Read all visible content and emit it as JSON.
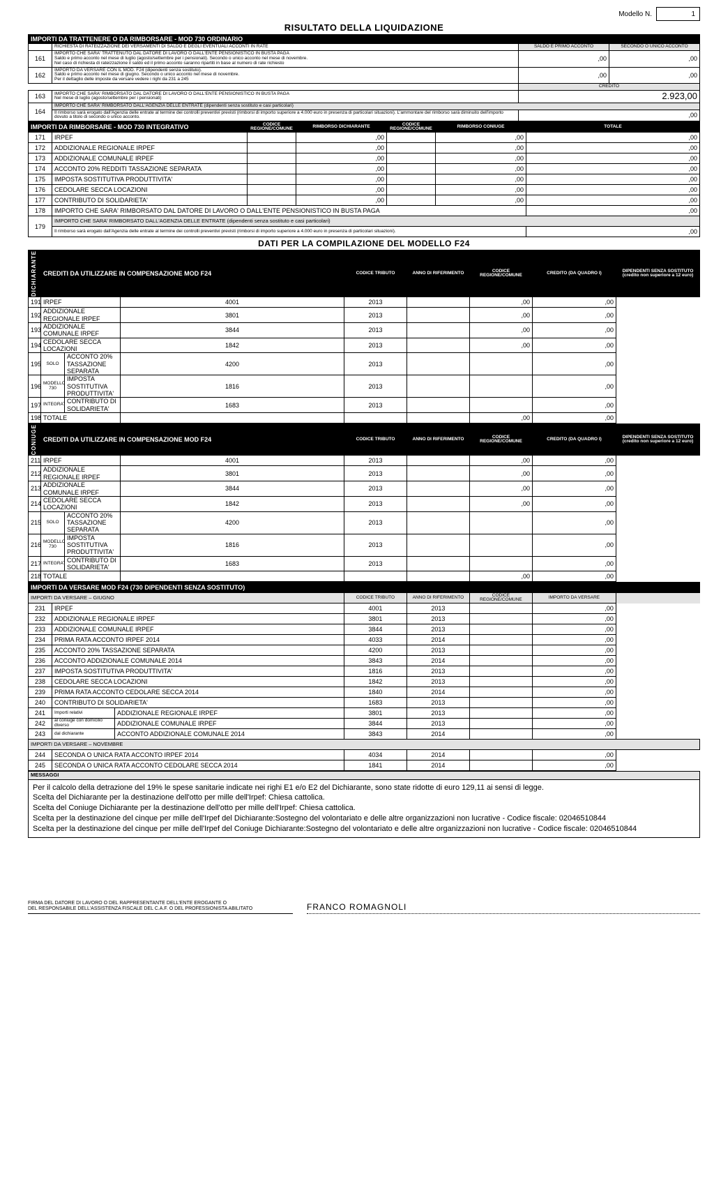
{
  "header": {
    "modello_label": "Modello N.",
    "modello_n": "1",
    "title": "RISULTATO DELLA LIQUIDAZIONE"
  },
  "sec1": {
    "bar": "IMPORTI DA TRATTENERE O DA RIMBORSARE - MOD 730 ORDINARIO",
    "sub": "RICHIESTA DI RATEIZZAZIONE DEI VERSAMENTI DI SALDO E DEGLI EVENTUALI ACCONTI IN RATE",
    "col_saldo": "SALDO E PRIMO ACCONTO",
    "col_sec": "SECONDO O UNICO ACCONTO",
    "r161": {
      "n": "161",
      "t": "IMPORTO CHE SARA' TRATTENUTO DAL DATORE DI LAVORO O DALL'ENTE PENSIONISTICO IN BUSTA PAGA\nSaldo e primo acconto nel mese di luglio (agosto/settembre per i pensionati). Secondo o unico acconto nel mese di novembre.\nNel caso di richiesta di rateizzazione il saldo ed il primo acconto saranno ripartiti in base al numero di rate richiesto",
      "a": ",00",
      "b": ",00"
    },
    "r162": {
      "n": "162",
      "t": "IMPORTO DA VERSARE CON IL MOD. F24 (dipendenti senza sostituto).\nSaldo e primo acconto nel mese di giugno. Secondo o unico acconto nel mese di novembre.\nPer il dettaglio delle imposte da versare vedere i righi da 231 a 245",
      "a": ",00",
      "b": ",00"
    },
    "credito": "CREDITO",
    "r163": {
      "n": "163",
      "t": "IMPORTO CHE SARA' RIMBORSATO DAL DATORE DI LAVORO O DALL'ENTE PENSIONISTICO IN BUSTA PAGA\nNel mese di luglio (agosto/settembre per i pensionati)",
      "v": "2.923,00"
    },
    "r164_t": "IMPORTO CHE SARA' RIMBORSATO DALL'AGENZIA DELLE ENTRATE (dipendenti senza sostituto e casi particolari)",
    "r164": {
      "n": "164",
      "t": "Il rimborso sarà erogato dall'Agenzia delle entrate al termine dei controlli preventivi previsti (rimborsi di importo superiore a 4.000 euro in presenza di particolari situazioni). L'ammontare del rimborso sarà diminuito dell'importo dovuto a titolo di secondo o unico acconto.",
      "v": ",00"
    }
  },
  "sec2": {
    "bar": "IMPORTI DA RIMBORSARE - MOD 730 INTEGRATIVO",
    "h1": "CODICE REGIONE/COMUNE",
    "h2": "RIMBORSO DICHIARANTE",
    "h3": "CODICE REGIONE/COMUNE",
    "h4": "RIMBORSO CONIUGE",
    "h5": "TOTALE",
    "rows": [
      {
        "n": "171",
        "d": "IRPEF",
        "a": ",00",
        "b": ",00",
        "c": ",00"
      },
      {
        "n": "172",
        "d": "ADDIZIONALE REGIONALE IRPEF",
        "a": ",00",
        "b": ",00",
        "c": ",00"
      },
      {
        "n": "173",
        "d": "ADDIZIONALE COMUNALE IRPEF",
        "a": ",00",
        "b": ",00",
        "c": ",00"
      },
      {
        "n": "174",
        "d": "ACCONTO 20% REDDITI TASSAZIONE SEPARATA",
        "a": ",00",
        "b": ",00",
        "c": ",00"
      },
      {
        "n": "175",
        "d": "IMPOSTA SOSTITUTIVA PRODUTTIVITA'",
        "a": ",00",
        "b": ",00",
        "c": ",00"
      },
      {
        "n": "176",
        "d": "CEDOLARE SECCA LOCAZIONI",
        "a": ",00",
        "b": ",00",
        "c": ",00"
      },
      {
        "n": "177",
        "d": "CONTRIBUTO DI SOLIDARIETA'",
        "a": ",00",
        "b": ",00",
        "c": ",00"
      }
    ],
    "r178": {
      "n": "178",
      "d": "IMPORTO CHE SARA' RIMBORSATO DAL DATORE DI LAVORO O DALL'ENTE PENSIONISTICO IN BUSTA PAGA",
      "v": ",00"
    },
    "r179": {
      "n": "179",
      "d": "IMPORTO CHE SARA' RIMBORSATO DALL'AGENZIA DELLE ENTRATE (dipendenti senza sostituto e casi particolari)"
    },
    "r179b": {
      "t": "Il rimborso sarà erogato dall'Agenzia delle entrate al termine dei controlli preventivi previsti (rimborsi di importo superiore a 4.000 euro in presenza di particolari situazioni).",
      "v": ",00"
    }
  },
  "sec3title": "DATI PER LA COMPILAZIONE DEL MODELLO F24",
  "cred": {
    "bar": "CREDITI DA UTILIZZARE IN COMPENSAZIONE MOD F24",
    "h": [
      "CODICE TRIBUTO",
      "ANNO DI RIFERIMENTO",
      "CODICE REGIONE/COMUNE",
      "CREDITO (DA QUADRO I)",
      "DIPENDENTI SENZA SOSTITUTO (credito non superiore a 12 euro)"
    ],
    "side": "DICHIARANTE",
    "rows": [
      {
        "n": "191",
        "d": "IRPEF",
        "ct": "4001",
        "a": "2013",
        "q": ",00",
        "s": ",00"
      },
      {
        "n": "192",
        "d": "ADDIZIONALE REGIONALE IRPEF",
        "ct": "3801",
        "a": "2013",
        "q": ",00",
        "s": ",00"
      },
      {
        "n": "193",
        "d": "ADDIZIONALE COMUNALE IRPEF",
        "ct": "3844",
        "a": "2013",
        "q": ",00",
        "s": ",00"
      },
      {
        "n": "194",
        "d": "CEDOLARE SECCA LOCAZIONI",
        "ct": "1842",
        "a": "2013",
        "q": ",00",
        "s": ",00"
      },
      {
        "n": "195",
        "pre": "SOLO",
        "d": "ACCONTO 20% TASSAZIONE SEPARATA",
        "ct": "4200",
        "a": "2013",
        "q": "",
        "s": ",00"
      },
      {
        "n": "196",
        "pre": "MODELLO 730",
        "d": "IMPOSTA SOSTITUTIVA PRODUTTIVITA'",
        "ct": "1816",
        "a": "2013",
        "q": "",
        "s": ",00"
      },
      {
        "n": "197",
        "pre": "INTEGRATIVO",
        "d": "CONTRIBUTO DI SOLIDARIETA'",
        "ct": "1683",
        "a": "2013",
        "q": "",
        "s": ",00"
      },
      {
        "n": "198",
        "d": "TOTALE",
        "ct": "",
        "a": "",
        "q": ",00",
        "s": ",00"
      }
    ]
  },
  "cred2": {
    "bar": "CREDITI DA UTILIZZARE IN COMPENSAZIONE MOD F24",
    "side": "CONIUGE",
    "rows": [
      {
        "n": "211",
        "d": "IRPEF",
        "ct": "4001",
        "a": "2013",
        "q": ",00",
        "s": ",00"
      },
      {
        "n": "212",
        "d": "ADDIZIONALE REGIONALE IRPEF",
        "ct": "3801",
        "a": "2013",
        "q": ",00",
        "s": ",00"
      },
      {
        "n": "213",
        "d": "ADDIZIONALE COMUNALE IRPEF",
        "ct": "3844",
        "a": "2013",
        "q": ",00",
        "s": ",00"
      },
      {
        "n": "214",
        "d": "CEDOLARE SECCA LOCAZIONI",
        "ct": "1842",
        "a": "2013",
        "q": ",00",
        "s": ",00"
      },
      {
        "n": "215",
        "pre": "SOLO",
        "d": "ACCONTO 20% TASSAZIONE SEPARATA",
        "ct": "4200",
        "a": "2013",
        "q": "",
        "s": ",00"
      },
      {
        "n": "216",
        "pre": "MODELLO 730",
        "d": "IMPOSTA SOSTITUTIVA PRODUTTIVITA'",
        "ct": "1816",
        "a": "2013",
        "q": "",
        "s": ",00"
      },
      {
        "n": "217",
        "pre": "INTEGRATIVO",
        "d": "CONTRIBUTO DI SOLIDARIETA'",
        "ct": "1683",
        "a": "2013",
        "q": "",
        "s": ",00"
      },
      {
        "n": "218",
        "d": "TOTALE",
        "ct": "",
        "a": "",
        "q": ",00",
        "s": ",00"
      }
    ]
  },
  "vers": {
    "bar": "IMPORTI DA VERSARE MOD F24 (730 DIPENDENTI SENZA SOSTITUTO)",
    "sub": "IMPORTI DA VERSARE – GIUGNO",
    "h": [
      "CODICE TRIBUTO",
      "ANNO DI RIFERIMENTO",
      "CODICE REGIONE/COMUNE",
      "IMPORTO DA VERSARE"
    ],
    "rows": [
      {
        "n": "231",
        "d": "IRPEF",
        "ct": "4001",
        "a": "2013",
        "v": ",00"
      },
      {
        "n": "232",
        "d": "ADDIZIONALE REGIONALE IRPEF",
        "ct": "3801",
        "a": "2013",
        "v": ",00"
      },
      {
        "n": "233",
        "d": "ADDIZIONALE COMUNALE IRPEF",
        "ct": "3844",
        "a": "2013",
        "v": ",00"
      },
      {
        "n": "234",
        "d": "PRIMA RATA ACCONTO IRPEF 2014",
        "ct": "4033",
        "a": "2014",
        "v": ",00"
      },
      {
        "n": "235",
        "d": "ACCONTO 20% TASSAZIONE SEPARATA",
        "ct": "4200",
        "a": "2013",
        "v": ",00"
      },
      {
        "n": "236",
        "d": "ACCONTO ADDIZIONALE COMUNALE 2014",
        "ct": "3843",
        "a": "2014",
        "v": ",00"
      },
      {
        "n": "237",
        "d": "IMPOSTA SOSTITUTIVA PRODUTTIVITA'",
        "ct": "1816",
        "a": "2013",
        "v": ",00"
      },
      {
        "n": "238",
        "d": "CEDOLARE SECCA LOCAZIONI",
        "ct": "1842",
        "a": "2013",
        "v": ",00"
      },
      {
        "n": "239",
        "d": "PRIMA RATA ACCONTO CEDOLARE SECCA 2014",
        "ct": "1840",
        "a": "2014",
        "v": ",00"
      },
      {
        "n": "240",
        "d": "CONTRIBUTO DI SOLIDARIETA'",
        "ct": "1683",
        "a": "2013",
        "v": ",00"
      },
      {
        "n": "241",
        "pre": "Importi relativi",
        "d": "ADDIZIONALE REGIONALE IRPEF",
        "ct": "3801",
        "a": "2013",
        "v": ",00"
      },
      {
        "n": "242",
        "pre": "al coniuge con domicilio diverso",
        "d": "ADDIZIONALE COMUNALE IRPEF",
        "ct": "3844",
        "a": "2013",
        "v": ",00"
      },
      {
        "n": "243",
        "pre": "dal dichiarante",
        "d": "ACCONTO ADDIZIONALE COMUNALE 2014",
        "ct": "3843",
        "a": "2014",
        "v": ",00"
      }
    ],
    "nov": "IMPORTI DA VERSARE – NOVEMBRE",
    "novrows": [
      {
        "n": "244",
        "d": "SECONDA O UNICA RATA ACCONTO IRPEF 2014",
        "ct": "4034",
        "a": "2014",
        "v": ",00"
      },
      {
        "n": "245",
        "d": "SECONDA O UNICA RATA ACCONTO CEDOLARE SECCA 2014",
        "ct": "1841",
        "a": "2014",
        "v": ",00"
      }
    ]
  },
  "msg": {
    "title": "MESSAGGI",
    "body": "Per il calcolo della detrazione del 19% le spese sanitarie indicate nei righi E1 e/o E2 del Dichiarante, sono state ridotte di euro 129,11 ai sensi di legge.\nScelta del Dichiarante per la destinazione dell'otto per mille dell'Irpef: Chiesa cattolica.\nScelta del Coniuge Dichiarante per la destinazione dell'otto per mille dell'Irpef: Chiesa cattolica.\nScelta per la destinazione del cinque per mille dell'Irpef del Dichiarante:Sostegno del volontariato e delle altre organizzazioni non lucrative - Codice fiscale: 02046510844\nScelta per la destinazione del cinque per mille dell'Irpef del Coniuge Dichiarante:Sostegno del volontariato e delle altre organizzazioni non lucrative - Codice fiscale: 02046510844"
  },
  "sig": {
    "left": "FIRMA DEL DATORE DI LAVORO O DEL RAPPRESENTANTE DELL'ENTE EROGANTE O\nDEL RESPONSABILE DELL'ASSISTENZA FISCALE DEL C.A.F. O DEL PROFESSIONISTA ABILITATO",
    "name": "FRANCO ROMAGNOLI"
  }
}
